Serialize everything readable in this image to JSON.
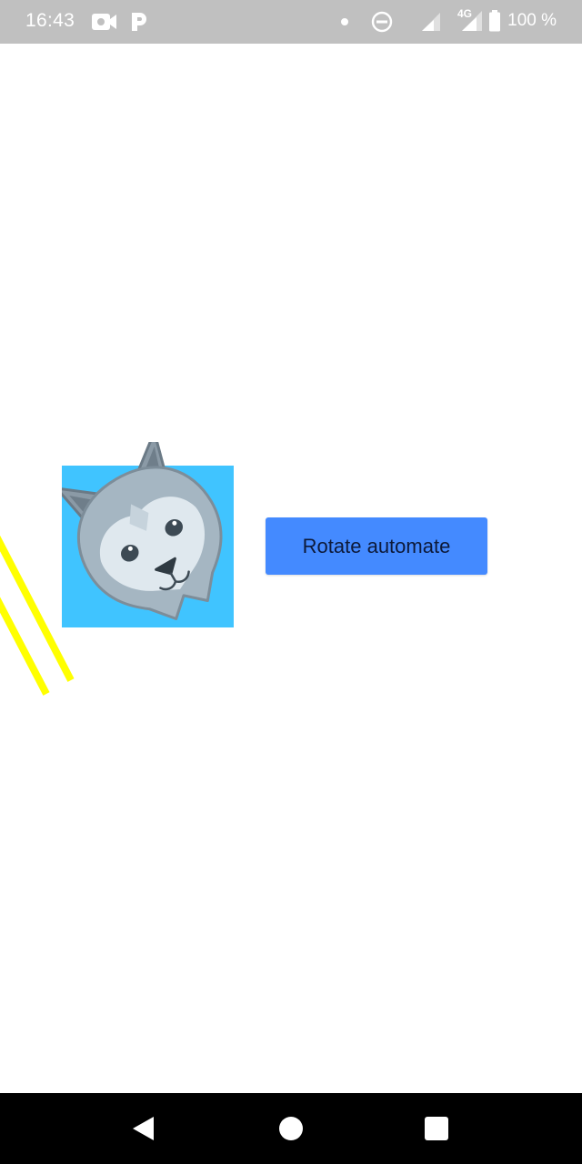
{
  "status_bar": {
    "time": "16:43",
    "battery_text": "100 %",
    "network_label": "4G",
    "icons": [
      "video-camera-icon",
      "parking-icon",
      "notification-dot-icon",
      "do-not-disturb-icon",
      "signal-icon",
      "signal-4g-icon",
      "battery-icon"
    ]
  },
  "main": {
    "rotate_button_label": "Rotate automate",
    "image": {
      "name": "wolf-face-image",
      "background_color": "#40c4ff"
    },
    "decoration_color": "#ffff00"
  },
  "nav_bar": {
    "icons": [
      "back-icon",
      "home-icon",
      "recents-icon"
    ]
  },
  "colors": {
    "status_bar": "#c0c0c0",
    "button": "#448aff",
    "nav_bar": "#000000"
  }
}
